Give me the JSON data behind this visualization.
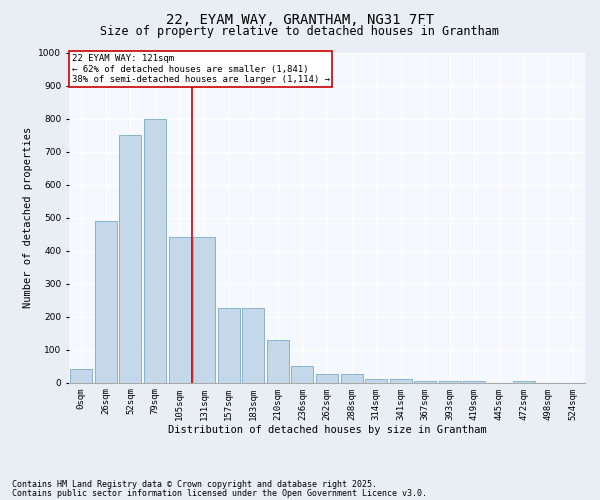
{
  "title": "22, EYAM WAY, GRANTHAM, NG31 7FT",
  "subtitle": "Size of property relative to detached houses in Grantham",
  "xlabel": "Distribution of detached houses by size in Grantham",
  "ylabel": "Number of detached properties",
  "categories": [
    "0sqm",
    "26sqm",
    "52sqm",
    "79sqm",
    "105sqm",
    "131sqm",
    "157sqm",
    "183sqm",
    "210sqm",
    "236sqm",
    "262sqm",
    "288sqm",
    "314sqm",
    "341sqm",
    "367sqm",
    "393sqm",
    "419sqm",
    "445sqm",
    "472sqm",
    "498sqm",
    "524sqm"
  ],
  "values": [
    40,
    490,
    750,
    800,
    440,
    440,
    225,
    225,
    130,
    50,
    25,
    25,
    10,
    10,
    5,
    5,
    5,
    0,
    5,
    0,
    0
  ],
  "bar_color": "#c5d8ea",
  "bar_edge_color": "#7aaac8",
  "vline_color": "#cc0000",
  "annotation_box_color": "#cc0000",
  "annotation_text_line1": "22 EYAM WAY: 121sqm",
  "annotation_text_line2": "← 62% of detached houses are smaller (1,841)",
  "annotation_text_line3": "38% of semi-detached houses are larger (1,114) →",
  "ylim": [
    0,
    1000
  ],
  "yticks": [
    0,
    100,
    200,
    300,
    400,
    500,
    600,
    700,
    800,
    900,
    1000
  ],
  "footnote1": "Contains HM Land Registry data © Crown copyright and database right 2025.",
  "footnote2": "Contains public sector information licensed under the Open Government Licence v3.0.",
  "title_fontsize": 10,
  "subtitle_fontsize": 8.5,
  "axis_label_fontsize": 7.5,
  "tick_fontsize": 6.5,
  "footnote_fontsize": 6,
  "fig_bg_color": "#e8eef4",
  "plot_bg_color": "#f5f8fc"
}
